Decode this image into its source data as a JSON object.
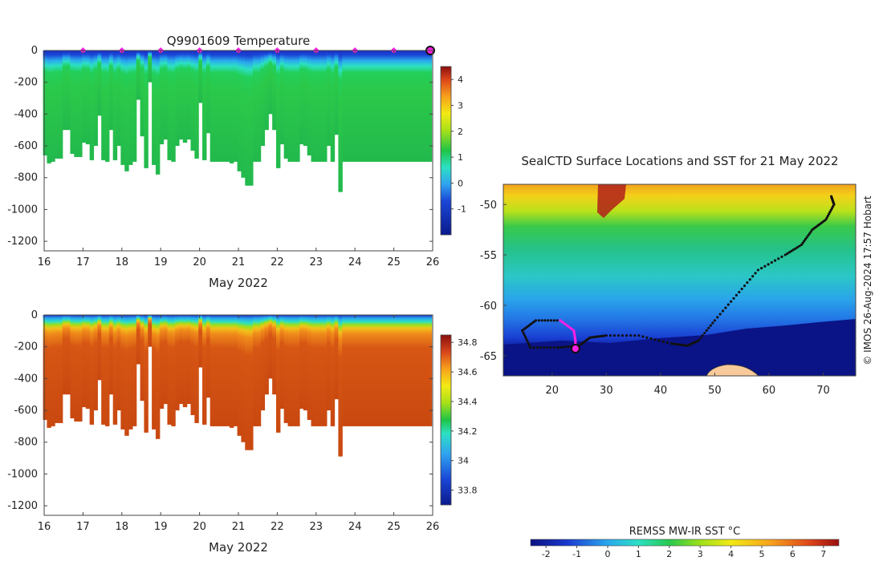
{
  "temperature_panel": {
    "title": "Q9901609  Temperature",
    "xlabel": "May 2022",
    "xticks": [
      "16",
      "17",
      "18",
      "19",
      "20",
      "21",
      "22",
      "23",
      "24",
      "25",
      "26"
    ],
    "yticks": [
      "0",
      "-200",
      "-400",
      "-600",
      "-800",
      "-1000",
      "-1200"
    ],
    "colorbar_ticks": [
      "4",
      "3",
      "2",
      "1",
      "0",
      "-1"
    ]
  },
  "salinity_panel": {
    "xlabel": "May 2022",
    "xticks": [
      "16",
      "17",
      "18",
      "19",
      "20",
      "21",
      "22",
      "23",
      "24",
      "25",
      "26"
    ],
    "yticks": [
      "0",
      "-200",
      "-400",
      "-600",
      "-800",
      "-1000",
      "-1200"
    ],
    "colorbar_ticks": [
      "34.8",
      "34.6",
      "34.4",
      "34.2",
      "34",
      "33.8"
    ]
  },
  "map_panel": {
    "title": "SealCTD Surface Locations and SST for 21 May 2022",
    "xticks": [
      "20",
      "30",
      "40",
      "50",
      "60",
      "70"
    ],
    "yticks": [
      "-50",
      "-55",
      "-60",
      "-65"
    ],
    "credit": "© IMOS 26-Aug-2024 17:57 Hobart",
    "colorbar_label": "REMSS MW-IR SST °C",
    "colorbar_ticks": [
      "-2",
      "-1",
      "0",
      "1",
      "2",
      "3",
      "4",
      "5",
      "6",
      "7"
    ]
  },
  "chart_data": [
    {
      "type": "heatmap",
      "title": "Q9901609  Temperature",
      "xlabel": "May 2022",
      "ylabel": "",
      "xlim": [
        16,
        26
      ],
      "ylim": [
        -1260,
        0
      ],
      "colorbar_range": [
        -2,
        4.5
      ],
      "units": "°C",
      "profile_days": [
        16.02,
        16.12,
        16.22,
        16.32,
        16.42,
        16.52,
        16.62,
        16.72,
        16.82,
        16.92,
        17.02,
        17.12,
        17.22,
        17.32,
        17.42,
        17.52,
        17.62,
        17.72,
        17.82,
        17.92,
        18.02,
        18.12,
        18.22,
        18.32,
        18.42,
        18.52,
        18.62,
        18.72,
        18.82,
        18.92,
        19.02,
        19.12,
        19.22,
        19.32,
        19.42,
        19.52,
        19.62,
        19.72,
        19.82,
        19.92,
        20.02,
        20.12,
        20.22,
        20.32,
        20.42,
        20.52,
        20.62,
        20.72,
        20.82,
        20.92,
        21.02,
        21.12,
        21.22,
        21.32,
        21.42,
        21.52,
        21.62,
        21.72,
        21.82,
        21.92,
        22.02,
        22.12,
        22.22,
        22.32,
        22.42,
        22.52,
        22.62,
        22.72,
        22.82,
        22.92,
        23.02,
        23.12,
        23.22,
        23.32,
        23.42,
        23.52,
        23.62,
        23.72,
        23.82,
        23.92,
        24.02,
        24.12,
        24.22,
        24.32,
        24.42,
        24.52,
        24.62,
        24.72,
        24.82,
        24.92,
        25.02,
        25.12,
        25.22,
        25.32,
        25.42,
        25.52,
        25.62,
        25.72,
        25.82,
        25.92
      ],
      "profile_max_depth": [
        660,
        710,
        700,
        680,
        680,
        500,
        500,
        650,
        670,
        670,
        580,
        590,
        690,
        600,
        410,
        690,
        700,
        500,
        690,
        600,
        720,
        760,
        720,
        700,
        310,
        540,
        740,
        200,
        720,
        780,
        590,
        560,
        690,
        700,
        600,
        560,
        580,
        560,
        630,
        680,
        330,
        690,
        520,
        700,
        700,
        700,
        700,
        700,
        710,
        700,
        760,
        800,
        850,
        850,
        700,
        700,
        600,
        500,
        400,
        500,
        740,
        590,
        680,
        700,
        700,
        700,
        590,
        600,
        660,
        700,
        700,
        700,
        700,
        600,
        700,
        530,
        890,
        700,
        700,
        700,
        700,
        700,
        700,
        700,
        700,
        700,
        700,
        700,
        700,
        700,
        700,
        700,
        700,
        700,
        700,
        700,
        700,
        700,
        700,
        700
      ],
      "sample_days_surface": [
        17,
        18,
        19,
        20,
        21,
        22,
        23,
        24,
        25
      ],
      "current_day": 26,
      "approx_profile_temps": {
        "surface": -1.7,
        "depth_100": 0.2,
        "depth_200_plus": 1.3
      }
    },
    {
      "type": "heatmap",
      "title": "",
      "xlabel": "May 2022",
      "ylabel": "",
      "xlim": [
        16,
        26
      ],
      "ylim": [
        -1260,
        0
      ],
      "colorbar_range": [
        33.7,
        34.85
      ],
      "approx_profile_salinity": {
        "surface": 33.8,
        "depth_100": 34.4,
        "depth_300_plus": 34.72
      }
    },
    {
      "type": "scatter",
      "title": "SealCTD Surface Locations and SST for 21 May 2022",
      "xlim": [
        11,
        76
      ],
      "ylim": [
        -67,
        -48
      ],
      "sst_range": [
        -2.5,
        7.5
      ],
      "track": [
        [
          71.5,
          -49.2
        ],
        [
          72.0,
          -50.0
        ],
        [
          70.5,
          -51.5
        ],
        [
          68.0,
          -52.5
        ],
        [
          66.0,
          -54.0
        ],
        [
          63.0,
          -55.0
        ],
        [
          58.0,
          -56.5
        ],
        [
          54.0,
          -59.0
        ],
        [
          50.0,
          -61.5
        ],
        [
          47.0,
          -63.5
        ],
        [
          45.0,
          -64.0
        ],
        [
          42.0,
          -63.8
        ],
        [
          36.0,
          -63.0
        ],
        [
          30.0,
          -63.0
        ],
        [
          27.0,
          -63.2
        ],
        [
          25.0,
          -64.0
        ],
        [
          21.0,
          -64.2
        ],
        [
          16.0,
          -64.2
        ],
        [
          14.5,
          -62.5
        ],
        [
          17.0,
          -61.5
        ],
        [
          21.5,
          -61.5
        ],
        [
          24.0,
          -62.5
        ],
        [
          24.3,
          -63.5
        ],
        [
          24.3,
          -64.3
        ]
      ],
      "current_location": [
        24.3,
        -64.3
      ],
      "land": "Antarctic coast near 53°E, -66°",
      "credit": "© IMOS 26-Aug-2024 17:57 Hobart"
    }
  ]
}
